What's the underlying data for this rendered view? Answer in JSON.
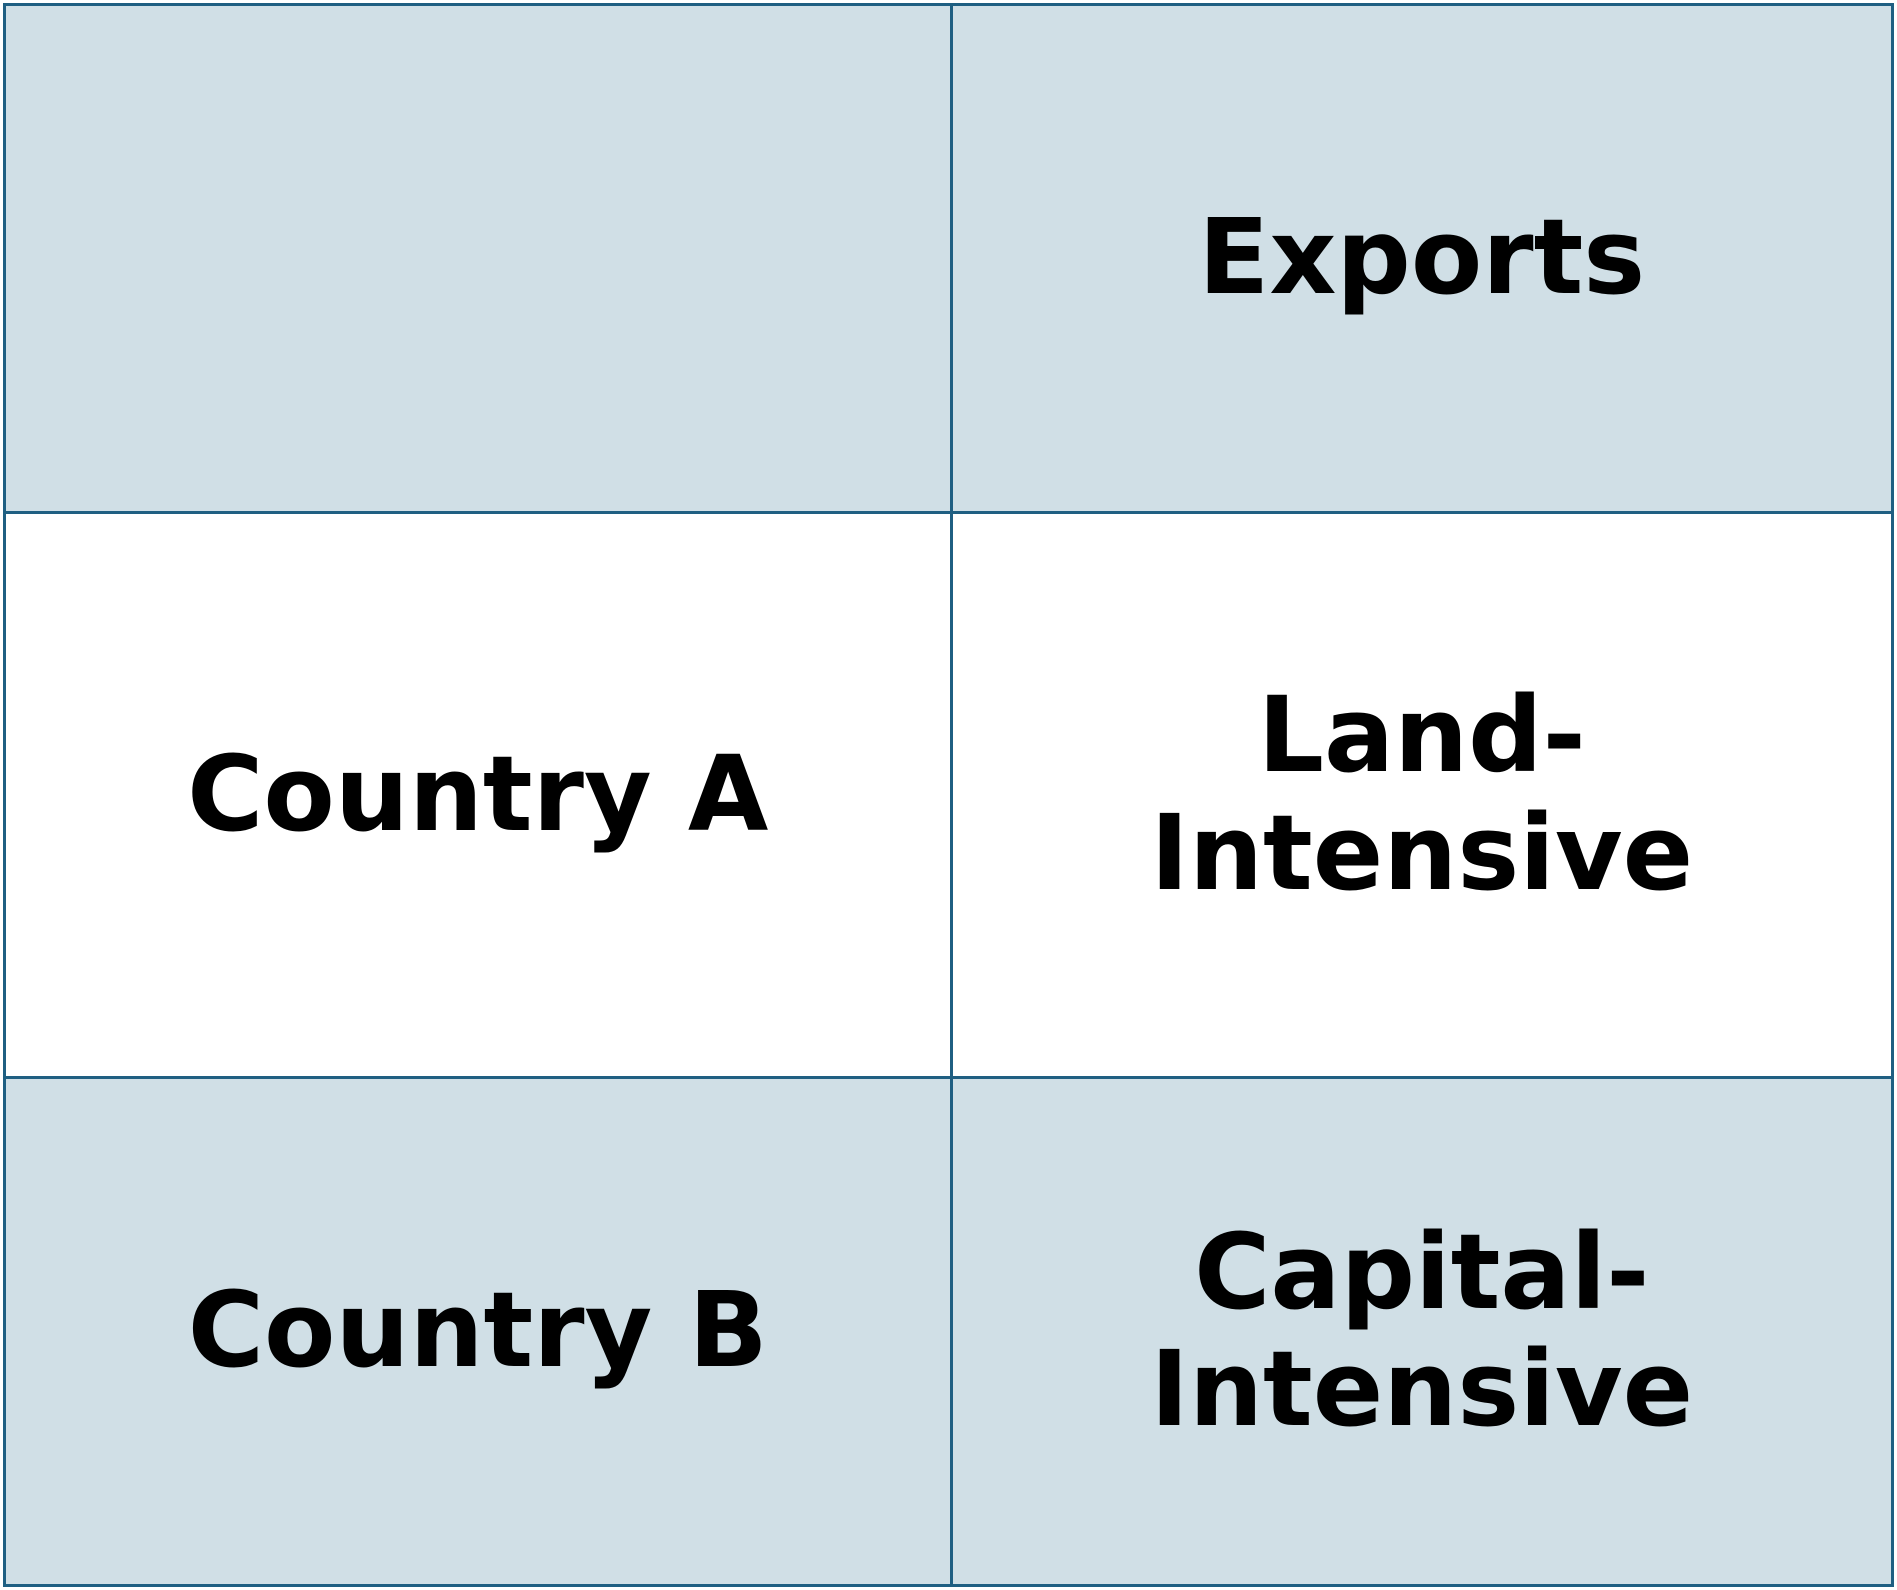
{
  "table": {
    "header": {
      "corner": "",
      "exports_label": "Exports"
    },
    "rows": [
      {
        "country": "Country A",
        "exports": "Land-\nIntensive"
      },
      {
        "country": "Country B",
        "exports": "Capital-\nIntensive"
      }
    ],
    "colors": {
      "border": "#1f5f82",
      "shaded_row": "#d0dfe6",
      "plain_row": "#ffffff"
    }
  }
}
